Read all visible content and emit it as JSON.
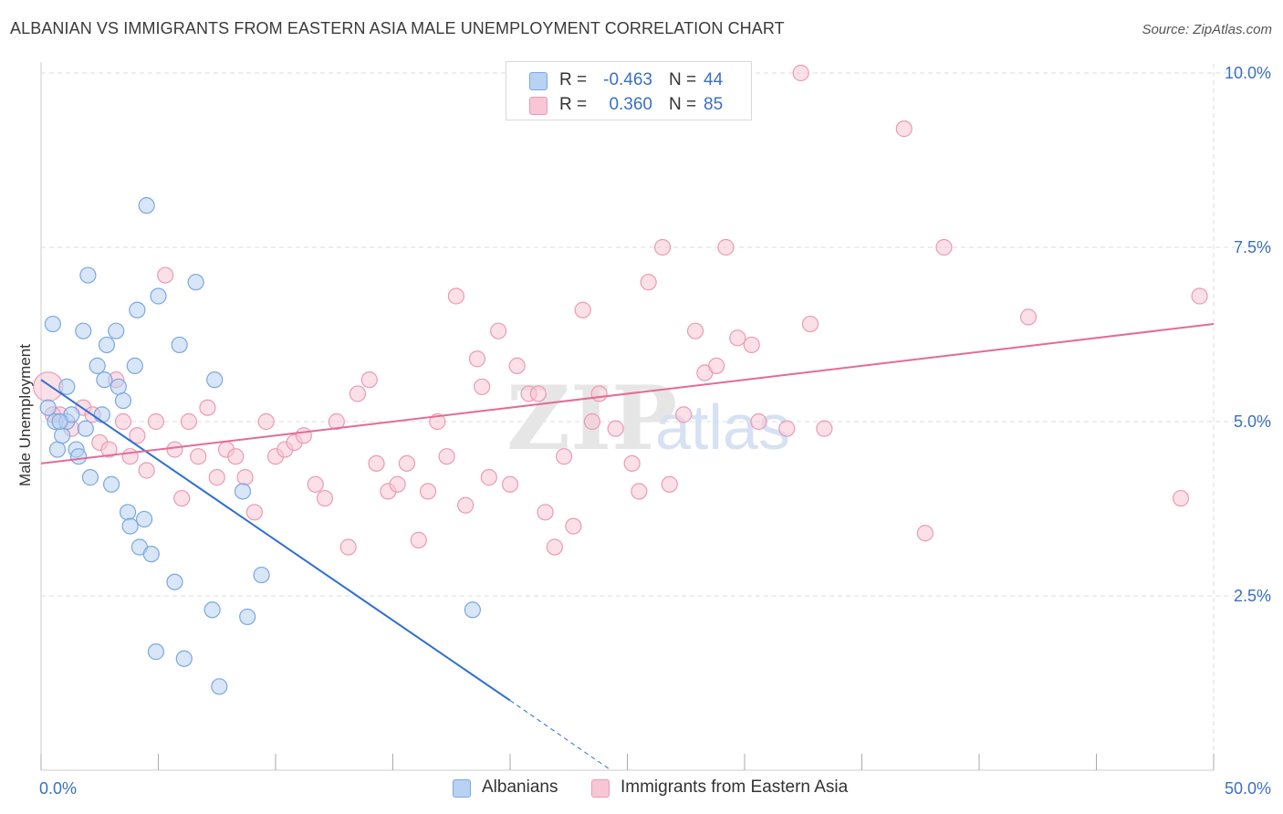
{
  "header": {
    "title": "ALBANIAN VS IMMIGRANTS FROM EASTERN ASIA MALE UNEMPLOYMENT CORRELATION CHART",
    "source": "Source: ZipAtlas.com"
  },
  "watermark": {
    "zip": "ZIP",
    "atlas": "atlas"
  },
  "legend_top": {
    "rows": [
      {
        "r_label": "R =",
        "r_value": "-0.463",
        "n_label": "N =",
        "n_value": "44"
      },
      {
        "r_label": "R =",
        "r_value": "0.360",
        "n_label": "N =",
        "n_value": "85"
      }
    ]
  },
  "legend_bottom": {
    "items": [
      {
        "label": "Albanians"
      },
      {
        "label": "Immigrants from Eastern Asia"
      }
    ]
  },
  "colors": {
    "blue_fill": "#b8d2f3",
    "blue_stroke": "#7aa8e0",
    "blue_line": "#2e6fd0",
    "pink_fill": "#f8c6d5",
    "pink_stroke": "#ec9ab3",
    "pink_line": "#e46b95",
    "tick_label": "#3a6fc4",
    "grid": "#dddddd"
  },
  "chart_data": {
    "type": "scatter",
    "title": "ALBANIAN VS IMMIGRANTS FROM EASTERN ASIA MALE UNEMPLOYMENT CORRELATION CHART",
    "xlabel": "",
    "ylabel": "Male Unemployment",
    "xlim": [
      0,
      50
    ],
    "ylim": [
      0,
      10
    ],
    "x_tick_labels": [
      {
        "value": 0,
        "label": "0.0%"
      },
      {
        "value": 50,
        "label": "50.0%"
      }
    ],
    "y_tick_labels": [
      {
        "value": 2.5,
        "label": "2.5%"
      },
      {
        "value": 5.0,
        "label": "5.0%"
      },
      {
        "value": 7.5,
        "label": "7.5%"
      },
      {
        "value": 10.0,
        "label": "10.0%"
      }
    ],
    "grid": true,
    "series": [
      {
        "name": "Albanians",
        "trend": {
          "x": [
            0,
            20
          ],
          "y": [
            5.6,
            1.0
          ],
          "dashed_to": [
            24.3,
            0.0
          ]
        },
        "points": [
          [
            0.3,
            5.2
          ],
          [
            0.5,
            6.4
          ],
          [
            0.6,
            5.0
          ],
          [
            0.7,
            4.6
          ],
          [
            0.9,
            4.8
          ],
          [
            1.1,
            5.0
          ],
          [
            1.1,
            5.5
          ],
          [
            1.3,
            5.1
          ],
          [
            1.5,
            4.6
          ],
          [
            1.6,
            4.5
          ],
          [
            1.8,
            6.3
          ],
          [
            2.0,
            7.1
          ],
          [
            2.1,
            4.2
          ],
          [
            2.4,
            5.8
          ],
          [
            2.6,
            5.1
          ],
          [
            2.7,
            5.6
          ],
          [
            2.8,
            6.1
          ],
          [
            3.0,
            4.1
          ],
          [
            3.2,
            6.3
          ],
          [
            3.3,
            5.5
          ],
          [
            3.5,
            5.3
          ],
          [
            3.7,
            3.7
          ],
          [
            3.8,
            3.5
          ],
          [
            4.0,
            5.8
          ],
          [
            4.1,
            6.6
          ],
          [
            4.2,
            3.2
          ],
          [
            4.4,
            3.6
          ],
          [
            4.5,
            8.1
          ],
          [
            4.7,
            3.1
          ],
          [
            4.9,
            1.7
          ],
          [
            5.0,
            6.8
          ],
          [
            5.7,
            2.7
          ],
          [
            5.9,
            6.1
          ],
          [
            6.1,
            1.6
          ],
          [
            6.6,
            7.0
          ],
          [
            7.3,
            2.3
          ],
          [
            7.4,
            5.6
          ],
          [
            7.6,
            1.2
          ],
          [
            8.6,
            4.0
          ],
          [
            8.8,
            2.2
          ],
          [
            9.4,
            2.8
          ],
          [
            18.4,
            2.3
          ],
          [
            0.8,
            5.0
          ],
          [
            1.9,
            4.9
          ]
        ]
      },
      {
        "name": "Immigrants from Eastern Asia",
        "trend": {
          "x": [
            0,
            50
          ],
          "y": [
            4.4,
            6.4
          ]
        },
        "points": [
          [
            0.3,
            5.5
          ],
          [
            0.8,
            5.1
          ],
          [
            1.3,
            4.9
          ],
          [
            1.8,
            5.2
          ],
          [
            2.2,
            5.1
          ],
          [
            2.5,
            4.7
          ],
          [
            2.9,
            4.6
          ],
          [
            3.2,
            5.6
          ],
          [
            3.5,
            5.0
          ],
          [
            3.8,
            4.5
          ],
          [
            4.1,
            4.8
          ],
          [
            4.5,
            4.3
          ],
          [
            4.9,
            5.0
          ],
          [
            5.3,
            7.1
          ],
          [
            5.7,
            4.6
          ],
          [
            6.0,
            3.9
          ],
          [
            6.3,
            5.0
          ],
          [
            6.7,
            4.5
          ],
          [
            7.1,
            5.2
          ],
          [
            7.5,
            4.2
          ],
          [
            7.9,
            4.6
          ],
          [
            8.3,
            4.5
          ],
          [
            8.7,
            4.2
          ],
          [
            9.1,
            3.7
          ],
          [
            9.6,
            5.0
          ],
          [
            10.0,
            4.5
          ],
          [
            10.4,
            4.6
          ],
          [
            10.8,
            4.7
          ],
          [
            11.2,
            4.8
          ],
          [
            11.7,
            4.1
          ],
          [
            12.1,
            3.9
          ],
          [
            12.6,
            5.0
          ],
          [
            13.1,
            3.2
          ],
          [
            13.5,
            5.4
          ],
          [
            14.0,
            5.6
          ],
          [
            14.3,
            4.4
          ],
          [
            14.8,
            4.0
          ],
          [
            15.2,
            4.1
          ],
          [
            15.6,
            4.4
          ],
          [
            16.1,
            3.3
          ],
          [
            16.5,
            4.0
          ],
          [
            16.9,
            5.0
          ],
          [
            17.3,
            4.5
          ],
          [
            17.7,
            6.8
          ],
          [
            18.1,
            3.8
          ],
          [
            18.6,
            5.9
          ],
          [
            18.8,
            5.5
          ],
          [
            19.1,
            4.2
          ],
          [
            19.5,
            6.3
          ],
          [
            20.0,
            4.1
          ],
          [
            20.3,
            5.8
          ],
          [
            20.8,
            5.4
          ],
          [
            21.2,
            5.4
          ],
          [
            21.5,
            3.7
          ],
          [
            21.9,
            3.2
          ],
          [
            22.3,
            4.5
          ],
          [
            22.7,
            3.5
          ],
          [
            23.1,
            6.6
          ],
          [
            23.5,
            5.0
          ],
          [
            23.8,
            5.4
          ],
          [
            24.5,
            4.9
          ],
          [
            25.2,
            4.4
          ],
          [
            25.5,
            4.0
          ],
          [
            25.9,
            7.0
          ],
          [
            26.5,
            7.5
          ],
          [
            26.8,
            4.1
          ],
          [
            27.4,
            5.1
          ],
          [
            27.9,
            6.3
          ],
          [
            28.3,
            5.7
          ],
          [
            28.8,
            5.8
          ],
          [
            29.2,
            7.5
          ],
          [
            29.7,
            6.2
          ],
          [
            30.3,
            6.1
          ],
          [
            30.6,
            5.0
          ],
          [
            31.8,
            4.9
          ],
          [
            32.4,
            10.0
          ],
          [
            32.8,
            6.4
          ],
          [
            33.4,
            4.9
          ],
          [
            36.8,
            9.2
          ],
          [
            37.7,
            3.4
          ],
          [
            38.5,
            7.5
          ],
          [
            42.1,
            6.5
          ],
          [
            48.6,
            3.9
          ],
          [
            49.4,
            6.8
          ],
          [
            0.5,
            5.1
          ]
        ]
      }
    ]
  }
}
